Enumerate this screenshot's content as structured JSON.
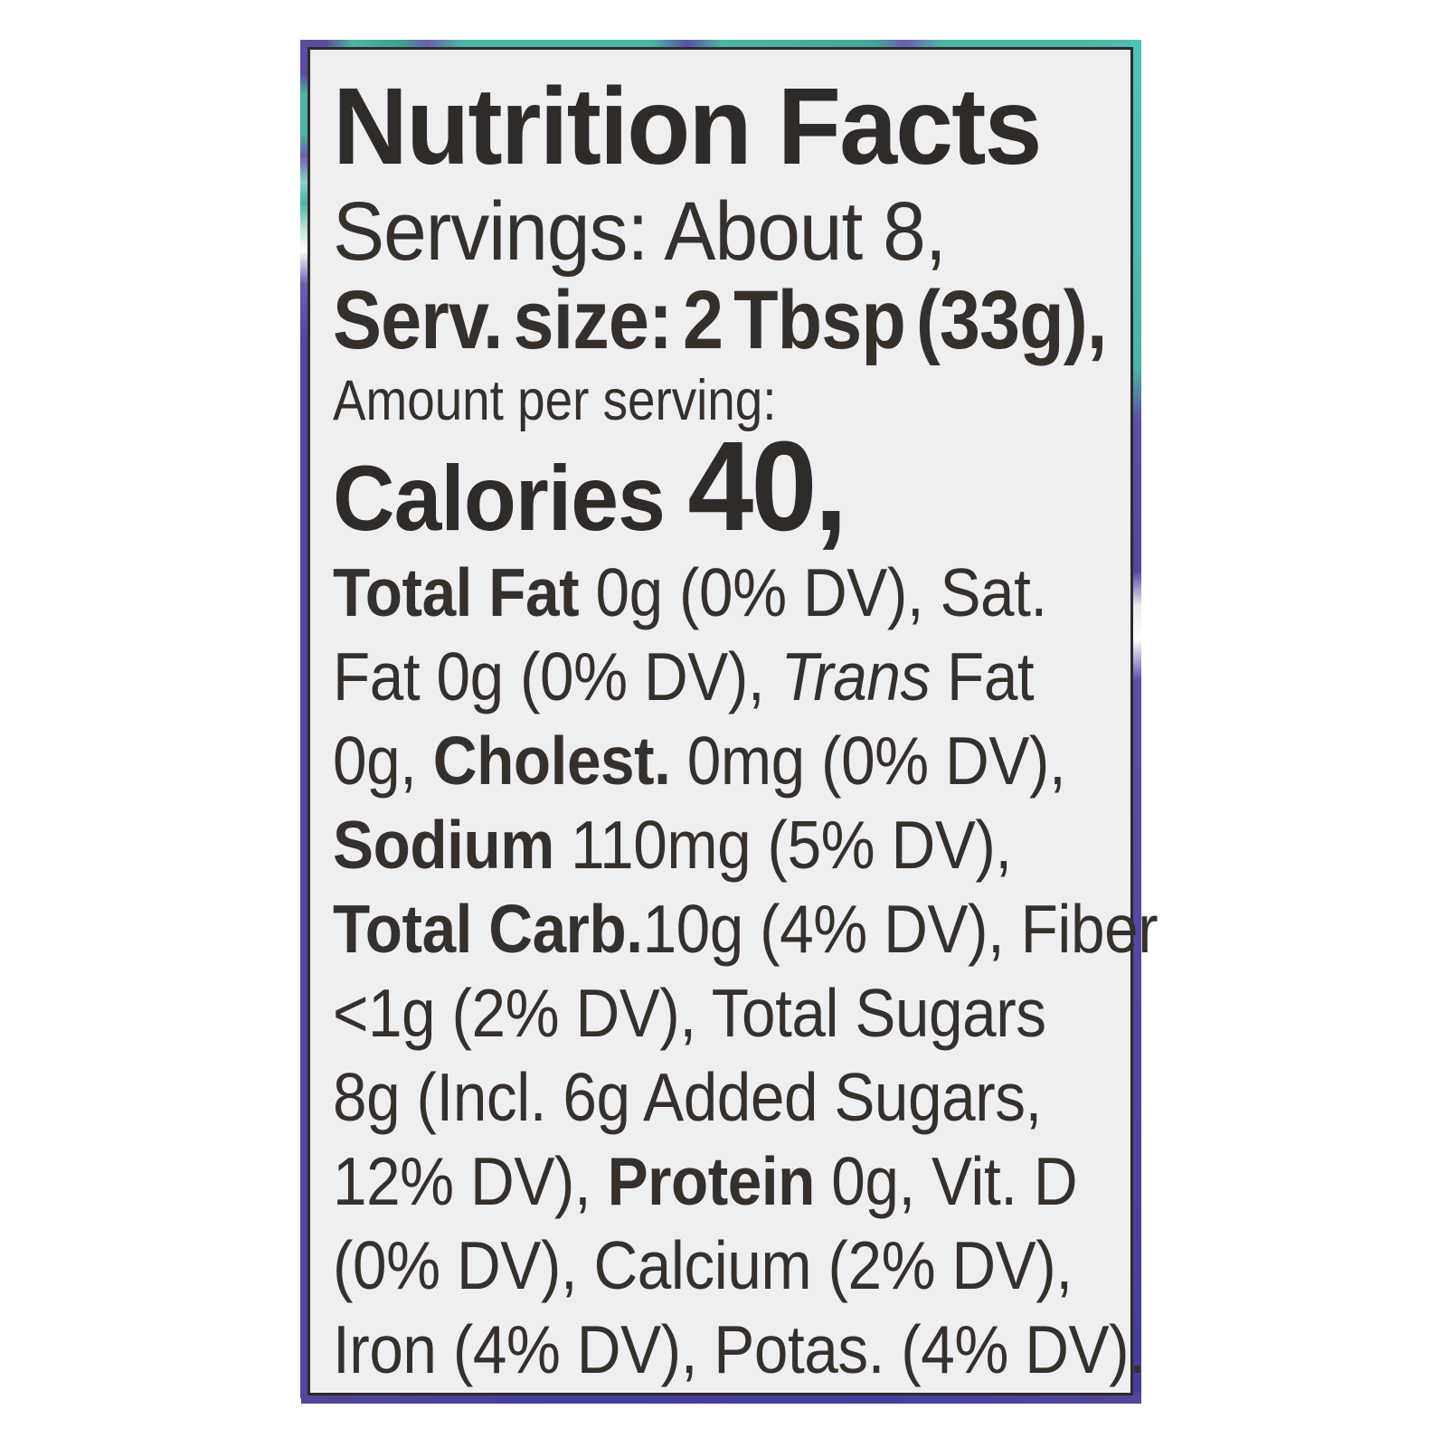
{
  "page": {
    "background_color": "#ffffff",
    "description_colors": {
      "label_background": "#efeef0",
      "label_border": "#2d2a28",
      "text": "#35302b",
      "package_edge_teal": "#4db3a4",
      "package_edge_purple": "#5347a0",
      "package_edge_indigo": "#453c9b"
    }
  },
  "label": {
    "title": "Nutrition Facts",
    "facts": {
      "servings": "About 8",
      "serving_size": "2 Tbsp (33g)",
      "calories": "40",
      "nutrients": [
        {
          "name": "Total Fat",
          "amount": "0g",
          "dv": "0% DV"
        },
        {
          "name": "Sat. Fat",
          "amount": "0g",
          "dv": "0% DV"
        },
        {
          "name": "Trans Fat",
          "amount": "0g",
          "dv": ""
        },
        {
          "name": "Cholest.",
          "amount": "0mg",
          "dv": "0% DV"
        },
        {
          "name": "Sodium",
          "amount": "110mg",
          "dv": "5% DV"
        },
        {
          "name": "Total Carb.",
          "amount": "10g",
          "dv": "4% DV"
        },
        {
          "name": "Fiber",
          "amount": "<1g",
          "dv": "2% DV"
        },
        {
          "name": "Total Sugars",
          "amount": "8g",
          "dv": ""
        },
        {
          "name": "Incl. Added Sugars",
          "amount": "6g",
          "dv": "12% DV"
        },
        {
          "name": "Protein",
          "amount": "0g",
          "dv": ""
        },
        {
          "name": "Vit. D",
          "amount": "",
          "dv": "0% DV"
        },
        {
          "name": "Calcium",
          "amount": "",
          "dv": "2% DV"
        },
        {
          "name": "Iron",
          "amount": "",
          "dv": "4% DV"
        },
        {
          "name": "Potas.",
          "amount": "",
          "dv": "4% DV"
        }
      ]
    },
    "lines": [
      {
        "type": "title",
        "segments": [
          {
            "t": "Nutrition Facts",
            "s": "bold"
          }
        ]
      },
      {
        "type": "servings",
        "segments": [
          {
            "t": "Servings: About 8,",
            "s": "regular"
          }
        ]
      },
      {
        "type": "servsize",
        "segments": [
          {
            "t": "Serv. size: 2 Tbsp (33g),",
            "s": "bold"
          }
        ]
      },
      {
        "type": "amount",
        "segments": [
          {
            "t": "Amount per serving:",
            "s": "regular"
          }
        ]
      },
      {
        "type": "calories",
        "segments": [
          {
            "t": "Calories ",
            "s": "bold"
          },
          {
            "t": "40,",
            "s": "bold-xl"
          }
        ]
      },
      {
        "type": "body",
        "segments": [
          {
            "t": "Total Fat ",
            "s": "bold"
          },
          {
            "t": "0g (0% DV), Sat.",
            "s": "regular"
          }
        ]
      },
      {
        "type": "body",
        "segments": [
          {
            "t": "Fat 0g (0% DV), ",
            "s": "regular"
          },
          {
            "t": "Trans",
            "s": "italic"
          },
          {
            "t": " Fat",
            "s": "regular"
          }
        ]
      },
      {
        "type": "body",
        "segments": [
          {
            "t": "0g, ",
            "s": "regular"
          },
          {
            "t": "Cholest.",
            "s": "bold"
          },
          {
            "t": " 0mg (0% DV),",
            "s": "regular"
          }
        ]
      },
      {
        "type": "body",
        "segments": [
          {
            "t": "Sodium",
            "s": "bold"
          },
          {
            "t": " 110mg (5% DV),",
            "s": "regular"
          }
        ]
      },
      {
        "type": "body",
        "segments": [
          {
            "t": "Total Carb.",
            "s": "bold"
          },
          {
            "t": "10g (4% DV), Fiber",
            "s": "regular"
          }
        ]
      },
      {
        "type": "body",
        "segments": [
          {
            "t": "<1g (2% DV), Total Sugars",
            "s": "regular"
          }
        ]
      },
      {
        "type": "body",
        "segments": [
          {
            "t": "8g (Incl. 6g Added Sugars,",
            "s": "regular"
          }
        ]
      },
      {
        "type": "body",
        "segments": [
          {
            "t": "12% DV), ",
            "s": "regular"
          },
          {
            "t": "Protein",
            "s": "bold"
          },
          {
            "t": " 0g, Vit. D",
            "s": "regular"
          }
        ]
      },
      {
        "type": "body",
        "segments": [
          {
            "t": "(0% DV), Calcium (2% DV),",
            "s": "regular"
          }
        ]
      },
      {
        "type": "body",
        "segments": [
          {
            "t": "Iron (4% DV), Potas. (4% DV).",
            "s": "regular"
          }
        ]
      }
    ]
  }
}
